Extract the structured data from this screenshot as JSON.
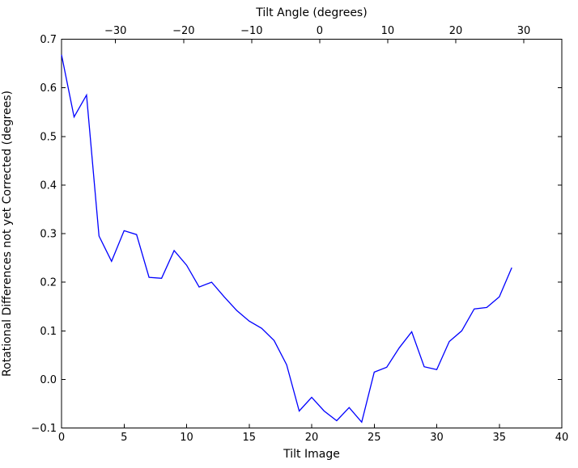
{
  "chart_data": {
    "type": "line",
    "top_axis_label": "Tilt Angle (degrees)",
    "xlabel": "Tilt Image",
    "ylabel": "Rotational Differences not yet Corrected (degrees)",
    "xlim": [
      0,
      40
    ],
    "ylim": [
      -0.1,
      0.7
    ],
    "grid": false,
    "legend": null,
    "background": "#ffffff",
    "axis_color": "#000000",
    "x_ticks": [
      0,
      5,
      10,
      15,
      20,
      25,
      30,
      35,
      40
    ],
    "x_tick_labels": [
      "0",
      "5",
      "10",
      "15",
      "20",
      "25",
      "30",
      "35",
      "40"
    ],
    "y_ticks": [
      0.7,
      0.6,
      0.5,
      0.4,
      0.3,
      0.2,
      0.1,
      0.0,
      -0.1
    ],
    "y_tick_labels": [
      "0.7",
      "0.6",
      "0.5",
      "0.4",
      "0.3",
      "0.2",
      "0.1",
      "0.0",
      "−0.1"
    ],
    "top_ticks": {
      "labels": [
        "−30",
        "−20",
        "−10",
        "0",
        "10",
        "20",
        "30"
      ],
      "fracs": [
        0.108,
        0.244,
        0.38,
        0.516,
        0.652,
        0.788,
        0.924
      ]
    },
    "series": [
      {
        "name": "rotational_difference",
        "color": "#0000ff",
        "x": [
          0,
          1,
          2,
          3,
          4,
          5,
          6,
          7,
          8,
          9,
          10,
          11,
          12,
          13,
          14,
          15,
          16,
          17,
          18,
          19,
          20,
          21,
          22,
          23,
          24,
          25,
          26,
          27,
          28,
          29,
          30,
          31,
          32,
          33,
          34,
          35,
          36
        ],
        "y": [
          0.668,
          0.54,
          0.585,
          0.295,
          0.243,
          0.306,
          0.298,
          0.21,
          0.208,
          0.265,
          0.235,
          0.19,
          0.2,
          0.17,
          0.142,
          0.12,
          0.105,
          0.08,
          0.03,
          -0.065,
          -0.037,
          -0.065,
          -0.085,
          -0.058,
          -0.088,
          0.015,
          0.025,
          0.065,
          0.098,
          0.026,
          0.02,
          0.078,
          0.1,
          0.145,
          0.148,
          0.17,
          0.23
        ]
      }
    ]
  }
}
